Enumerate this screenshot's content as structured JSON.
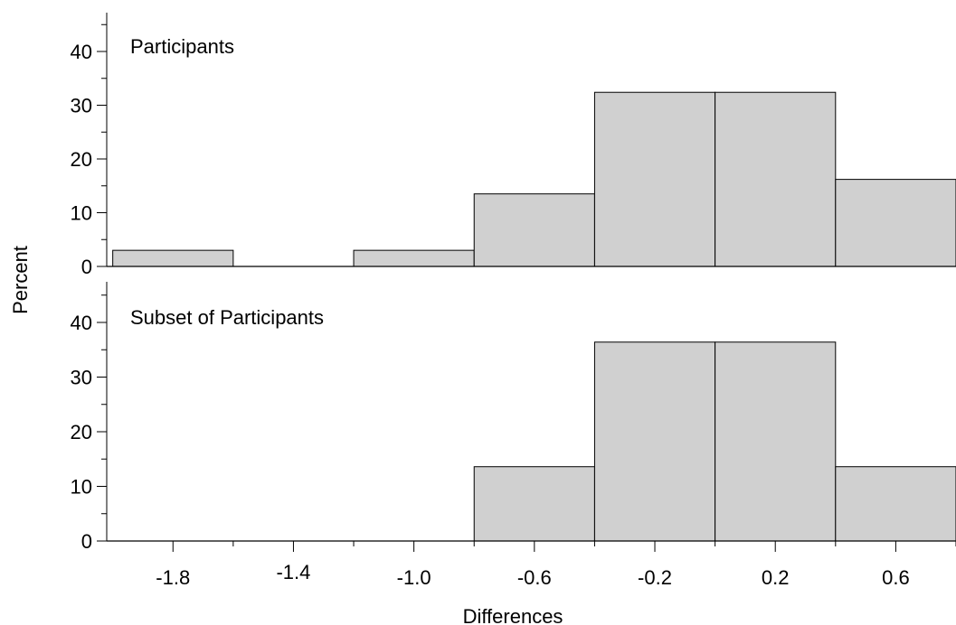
{
  "chart_data": [
    {
      "type": "bar",
      "title": "Participants",
      "bins": [
        {
          "x0": -2.0,
          "x1": -1.6,
          "value": 3
        },
        {
          "x0": -1.6,
          "x1": -1.2,
          "value": 0
        },
        {
          "x0": -1.2,
          "x1": -0.8,
          "value": 3
        },
        {
          "x0": -0.8,
          "x1": -0.4,
          "value": 13.5
        },
        {
          "x0": -0.4,
          "x1": 0.0,
          "value": 32.4
        },
        {
          "x0": 0.0,
          "x1": 0.4,
          "value": 32.4
        },
        {
          "x0": 0.4,
          "x1": 0.8,
          "value": 16.2
        }
      ],
      "ylim": [
        0,
        47
      ],
      "yticks": [
        0,
        10,
        20,
        30,
        40
      ],
      "ytick_labels": [
        "0",
        "10",
        "20",
        "30",
        "40"
      ],
      "xlim": [
        -2.02,
        0.8
      ],
      "grid": false,
      "bar_color": "#d0d0d0"
    },
    {
      "type": "bar",
      "title": "Subset of Participants",
      "bins": [
        {
          "x0": -2.0,
          "x1": -1.6,
          "value": 0
        },
        {
          "x0": -1.6,
          "x1": -1.2,
          "value": 0
        },
        {
          "x0": -1.2,
          "x1": -0.8,
          "value": 0
        },
        {
          "x0": -0.8,
          "x1": -0.4,
          "value": 13.6
        },
        {
          "x0": -0.4,
          "x1": 0.0,
          "value": 36.4
        },
        {
          "x0": 0.0,
          "x1": 0.4,
          "value": 36.4
        },
        {
          "x0": 0.4,
          "x1": 0.8,
          "value": 13.6
        }
      ],
      "ylim": [
        0,
        47
      ],
      "yticks": [
        0,
        10,
        20,
        30,
        40
      ],
      "ytick_labels": [
        "0",
        "10",
        "20",
        "30",
        "40"
      ],
      "xlim": [
        -2.02,
        0.8
      ],
      "grid": false,
      "bar_color": "#d0d0d0"
    }
  ],
  "shared": {
    "ylabel": "Percent",
    "xlabel": "Differences",
    "xticks": [
      -1.8,
      -1.4,
      -1.0,
      -0.6,
      -0.2,
      0.2,
      0.6
    ],
    "xtick_labels": [
      "-1.8",
      "-1.4",
      "-1.0",
      "-0.6",
      "-0.2",
      "0.2",
      "0.6"
    ]
  }
}
